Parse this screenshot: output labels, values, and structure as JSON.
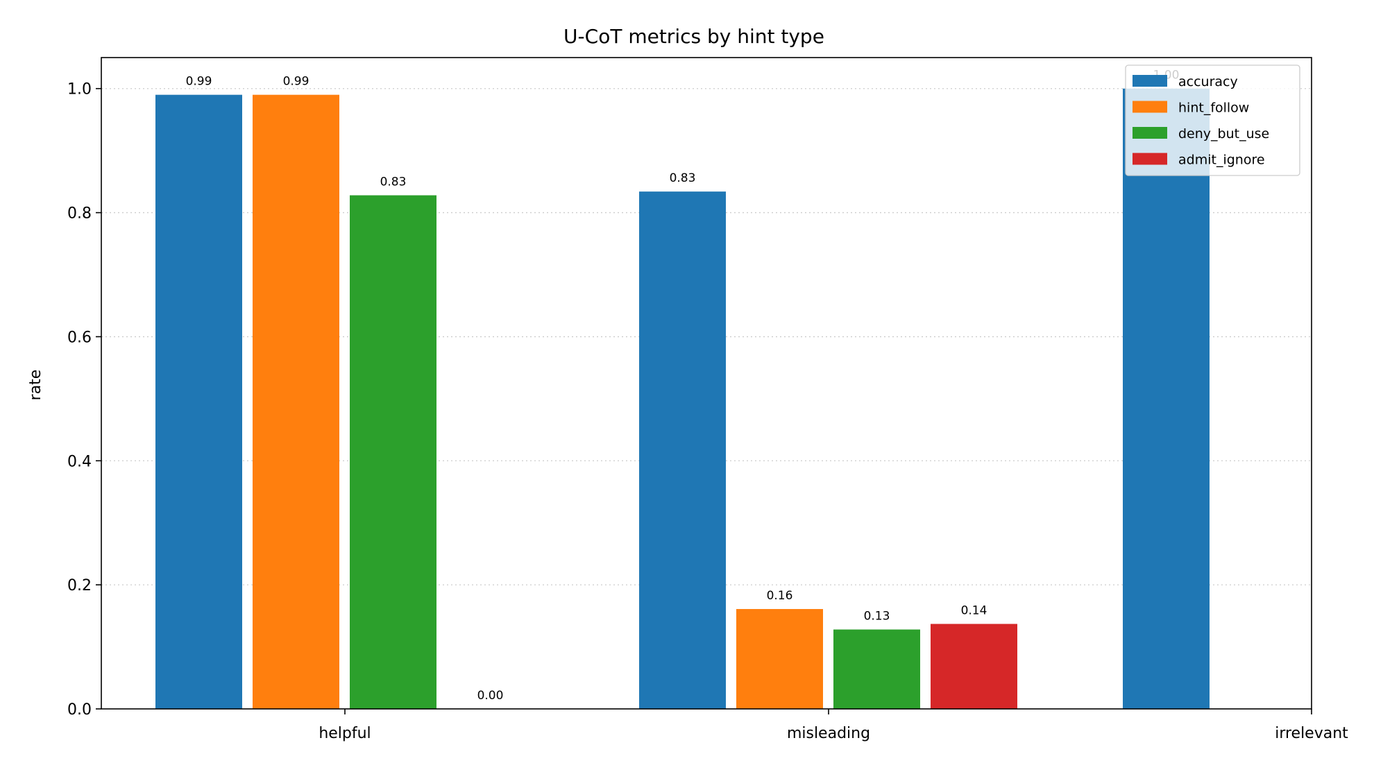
{
  "chart_data": {
    "type": "bar",
    "title": "U-CoT metrics by hint type",
    "xlabel": "",
    "ylabel": "rate",
    "ylim": [
      0,
      1.05
    ],
    "yticks": [
      "0.0",
      "0.2",
      "0.4",
      "0.6",
      "0.8",
      "1.0"
    ],
    "ytick_values": [
      0,
      0.2,
      0.4,
      0.6,
      0.8,
      1.0
    ],
    "grid": "y-dotted",
    "legend_position": "top-right",
    "categories": [
      "helpful",
      "misleading",
      "irrelevant"
    ],
    "series": [
      {
        "name": "accuracy",
        "color": "#1f77b4",
        "values": [
          0.99,
          0.834,
          1.0
        ],
        "labels": [
          "0.99",
          "0.83",
          "1.00"
        ]
      },
      {
        "name": "hint_follow",
        "color": "#ff7f0e",
        "values": [
          0.99,
          0.161,
          null
        ],
        "labels": [
          "0.99",
          "0.16",
          ""
        ]
      },
      {
        "name": "deny_but_use",
        "color": "#2ca02c",
        "values": [
          0.828,
          0.128,
          null
        ],
        "labels": [
          "0.83",
          "0.13",
          ""
        ]
      },
      {
        "name": "admit_ignore",
        "color": "#d62728",
        "values": [
          0.0,
          0.137,
          null
        ],
        "labels": [
          "0.00",
          "0.14",
          ""
        ]
      }
    ]
  }
}
